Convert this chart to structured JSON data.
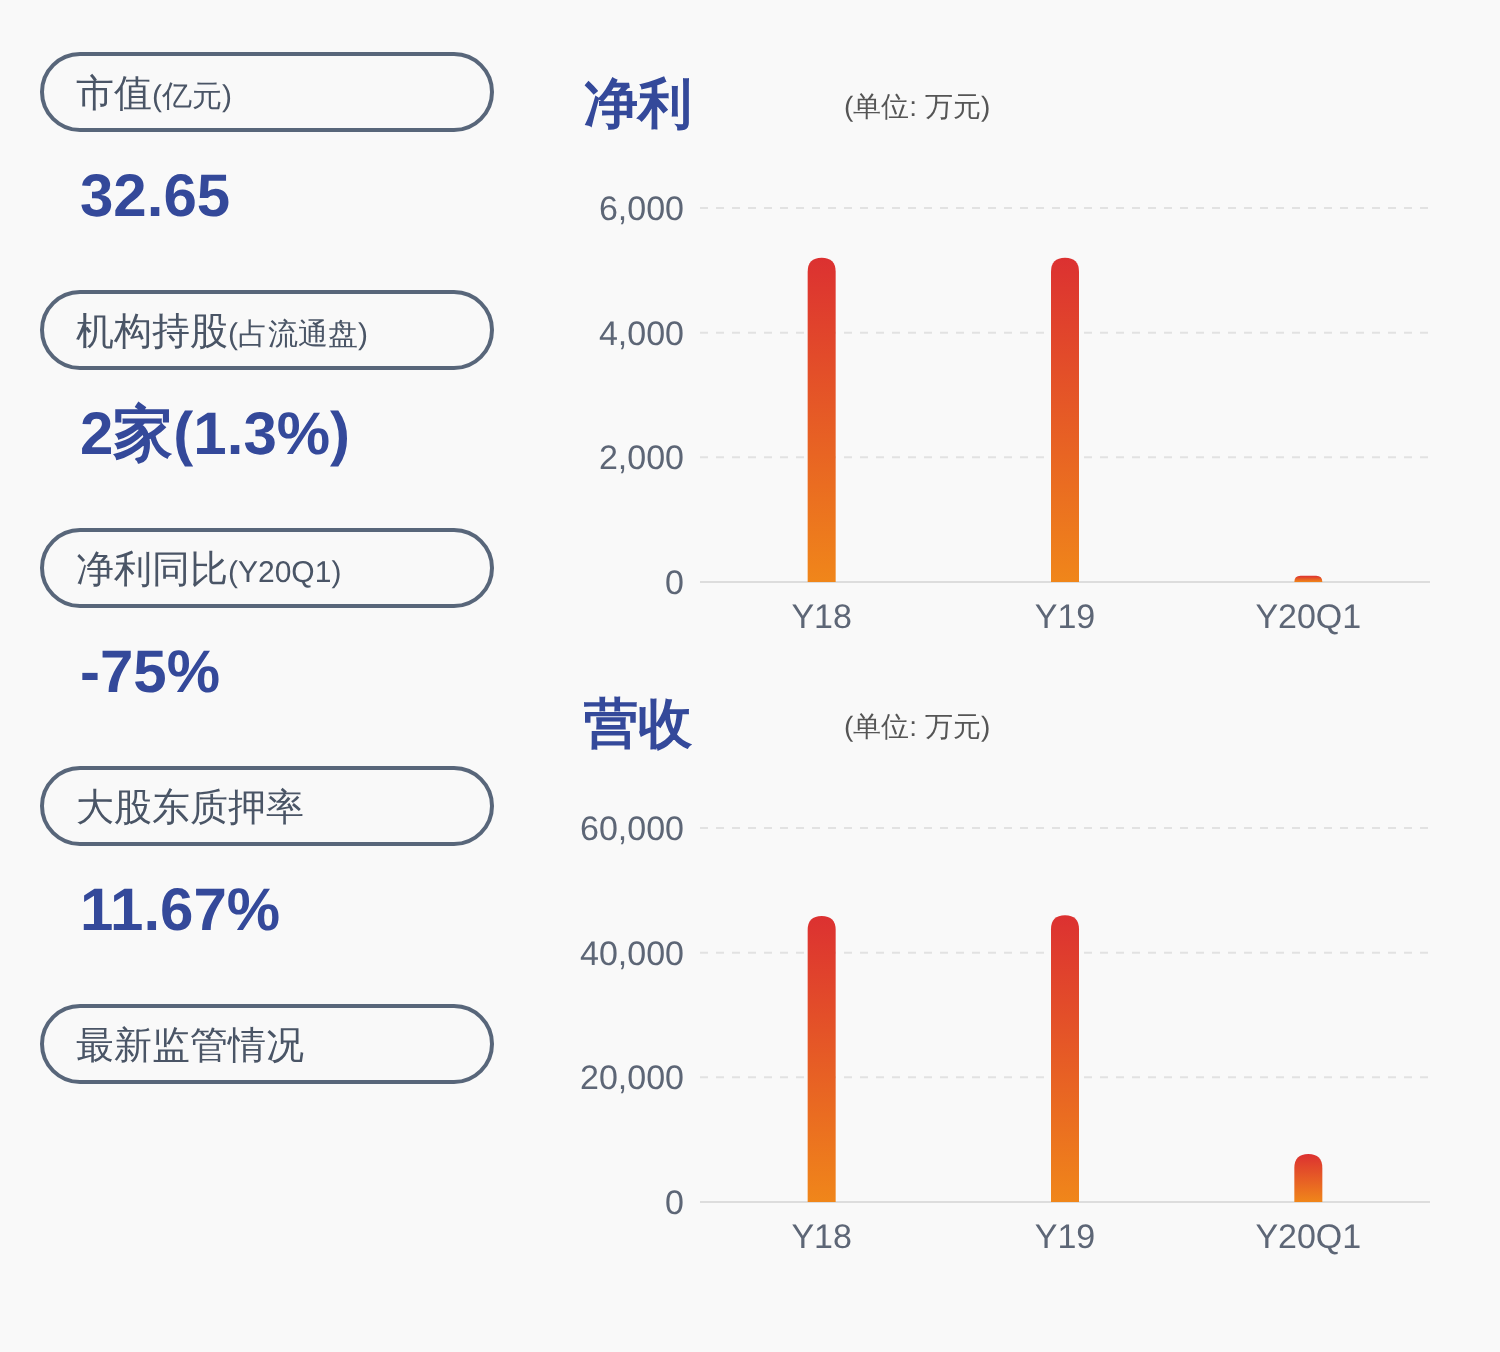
{
  "chart_data": [
    {
      "type": "other",
      "categories": [
        "市值(亿元)",
        "机构持股(占流通盘)",
        "净利同比(Y20Q1)",
        "大股东质押率",
        "最新监管情况"
      ],
      "value_labels": [
        "32.65",
        "2家(1.3%)",
        "-75%",
        "11.67%",
        null
      ]
    },
    {
      "type": "bar",
      "title": "净利",
      "subtitle": "(单位: 万元)",
      "categories": [
        "Y18",
        "Y19",
        "Y20Q1"
      ],
      "series": [
        {
          "color": "#dc3131",
          "values": [
            5200,
            5200,
            100
          ]
        }
      ],
      "ylim": [
        0,
        6000
      ],
      "yticks": [
        0,
        {
          "value": 2000,
          "label": "2,000"
        },
        {
          "value": 4000,
          "label": "4,000"
        },
        {
          "value": 6000,
          "label": "6,000"
        }
      ],
      "grid": "y"
    },
    {
      "type": "bar",
      "title": "营收",
      "subtitle": "(单位: 万元)",
      "categories": [
        "Y18",
        "Y19",
        "Y20Q1"
      ],
      "series": [
        {
          "color": "#dc3131",
          "values": [
            45900,
            46000,
            7700
          ]
        }
      ],
      "ylim": [
        0,
        60000
      ],
      "yticks": [
        0,
        {
          "value": 20000,
          "label": "20,000"
        },
        {
          "value": 40000,
          "label": "40,000"
        },
        {
          "value": 60000,
          "label": "60,000"
        }
      ],
      "grid": "y"
    }
  ]
}
